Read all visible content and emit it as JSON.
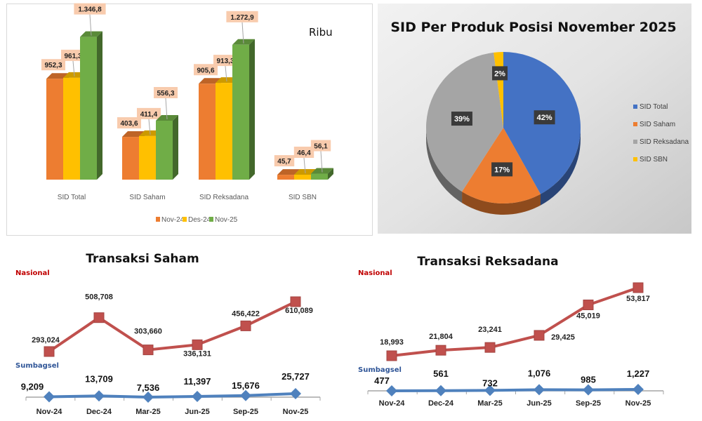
{
  "chart_data": [
    {
      "type": "bar",
      "style": "3d-clustered",
      "unit_note": "Ribu",
      "categories": [
        "SID Total",
        "SID Saham",
        "SID Reksadana",
        "SID SBN"
      ],
      "series": [
        {
          "name": "Nov-24",
          "color": "#ed7d31",
          "values": [
            952.3,
            403.6,
            905.6,
            45.7
          ],
          "labels": [
            "952,3",
            "403,6",
            "905,6",
            "45,7"
          ]
        },
        {
          "name": "Des-24",
          "color": "#ffc000",
          "values": [
            961.3,
            411.4,
            913.3,
            46.4
          ],
          "labels": [
            "961,3",
            "411,4",
            "913,3",
            "46,4"
          ]
        },
        {
          "name": "Nov-25",
          "color": "#70ad47",
          "values": [
            1346.8,
            556.3,
            1272.9,
            56.1
          ],
          "labels": [
            "1.346,8",
            "556,3",
            "1.272,9",
            "56,1"
          ]
        }
      ],
      "label_box_color": "#f8cbad",
      "legend": "bottom",
      "grid": false
    },
    {
      "type": "pie",
      "style": "3d",
      "title": "SID Per Produk Posisi November 2025",
      "slices": [
        {
          "name": "SID Total",
          "value": 42,
          "label": "42%",
          "color": "#4472c4"
        },
        {
          "name": "SID Saham",
          "value": 17,
          "label": "17%",
          "color": "#ed7d31"
        },
        {
          "name": "SID Reksadana",
          "value": 39,
          "label": "39%",
          "color": "#a5a5a5"
        },
        {
          "name": "SID SBN",
          "value": 2,
          "label": "2%",
          "color": "#ffc000"
        }
      ],
      "legend": "right"
    },
    {
      "type": "line",
      "title": "Transaksi Saham",
      "categories": [
        "Nov-24",
        "Dec-24",
        "Mar-25",
        "Jun-25",
        "Sep-25",
        "Nov-25"
      ],
      "series": [
        {
          "name": "Nasional",
          "color": "#c0504d",
          "marker": "square",
          "values": [
            293024,
            508708,
            303660,
            336131,
            456422,
            610089
          ],
          "labels": [
            "293,024",
            "508,708",
            "303,660",
            "336,131",
            "456,422",
            "610,089"
          ]
        },
        {
          "name": "Sumbagsel",
          "color": "#4f81bd",
          "marker": "diamond",
          "values": [
            9209,
            13709,
            7536,
            11397,
            15676,
            25727
          ],
          "labels": [
            "9,209",
            "13,709",
            "7,536",
            "11,397",
            "15,676",
            "25,727"
          ]
        }
      ],
      "grid": false
    },
    {
      "type": "line",
      "title": "Transaksi Reksadana",
      "categories": [
        "Nov-24",
        "Dec-24",
        "Mar-25",
        "Jun-25",
        "Sep-25",
        "Nov-25"
      ],
      "series": [
        {
          "name": "Nasional",
          "color": "#c0504d",
          "marker": "square",
          "values": [
            18993,
            21804,
            23241,
            29425,
            45019,
            53817
          ],
          "labels": [
            "18,993",
            "21,804",
            "23,241",
            "29,425",
            "45,019",
            "53,817"
          ]
        },
        {
          "name": "Sumbagsel",
          "color": "#4f81bd",
          "marker": "diamond",
          "values": [
            477,
            561,
            732,
            1076,
            985,
            1227
          ],
          "labels": [
            "477",
            "561",
            "732",
            "1,076",
            "985",
            "1,227"
          ]
        }
      ],
      "grid": false
    }
  ]
}
